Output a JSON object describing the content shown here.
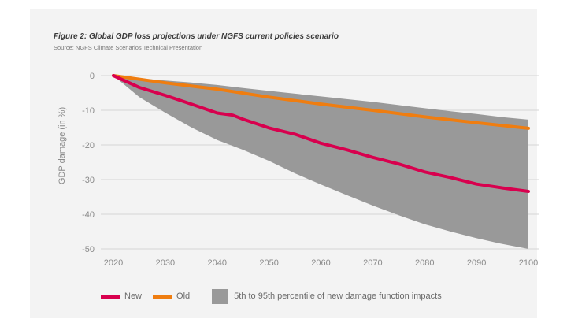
{
  "figure": {
    "title": "Figure 2: Global GDP loss projections under NGFS current policies scenario",
    "source": "Source: NGFS Climate Scenarios Technical Presentation"
  },
  "colors": {
    "new": "#d8004e",
    "old": "#ef7d10",
    "band": "#999999",
    "grid": "#d6d6d6",
    "tick_text": "#8a8a8a",
    "panel": "#f3f3f3"
  },
  "chart_data": {
    "type": "line",
    "title": "Figure 2: Global GDP loss projections under NGFS current policies scenario",
    "xlabel": "",
    "ylabel": "GDP damage (in %)",
    "xlim": [
      2020,
      2100
    ],
    "ylim": [
      -50,
      0
    ],
    "x_ticks": [
      2020,
      2030,
      2040,
      2050,
      2060,
      2070,
      2080,
      2090,
      2100
    ],
    "y_ticks": [
      0,
      -10,
      -20,
      -30,
      -40,
      -50
    ],
    "grid": "horizontal",
    "legend_position": "bottom",
    "series": [
      {
        "name": "New",
        "x": [
          2020,
          2025,
          2030,
          2035,
          2040,
          2043,
          2045,
          2050,
          2055,
          2060,
          2065,
          2070,
          2075,
          2080,
          2085,
          2090,
          2095,
          2100
        ],
        "y": [
          0,
          -3.4,
          -5.7,
          -8.2,
          -10.8,
          -11.4,
          -12.6,
          -15.1,
          -16.9,
          -19.5,
          -21.4,
          -23.6,
          -25.5,
          -27.8,
          -29.4,
          -31.3,
          -32.4,
          -33.4
        ]
      },
      {
        "name": "Old",
        "x": [
          2020,
          2030,
          2040,
          2050,
          2060,
          2070,
          2080,
          2090,
          2100
        ],
        "y": [
          0,
          -2.1,
          -3.9,
          -6.2,
          -8.2,
          -10.0,
          -11.9,
          -13.6,
          -15.2
        ]
      }
    ],
    "band": {
      "name": "5th to 95th percentile of new damage function impacts",
      "x": [
        2020,
        2025,
        2030,
        2035,
        2040,
        2045,
        2050,
        2055,
        2060,
        2065,
        2070,
        2075,
        2080,
        2085,
        2090,
        2095,
        2100
      ],
      "upper": [
        0,
        -0.8,
        -1.4,
        -2.0,
        -2.7,
        -3.6,
        -4.4,
        -5.2,
        -6.0,
        -6.8,
        -7.6,
        -8.5,
        -9.4,
        -10.3,
        -11.1,
        -12.0,
        -12.7
      ],
      "lower": [
        0,
        -6.2,
        -10.7,
        -14.9,
        -18.6,
        -21.4,
        -24.6,
        -28.2,
        -31.4,
        -34.5,
        -37.5,
        -40.3,
        -42.9,
        -45.0,
        -46.9,
        -48.6,
        -50.0
      ]
    }
  }
}
